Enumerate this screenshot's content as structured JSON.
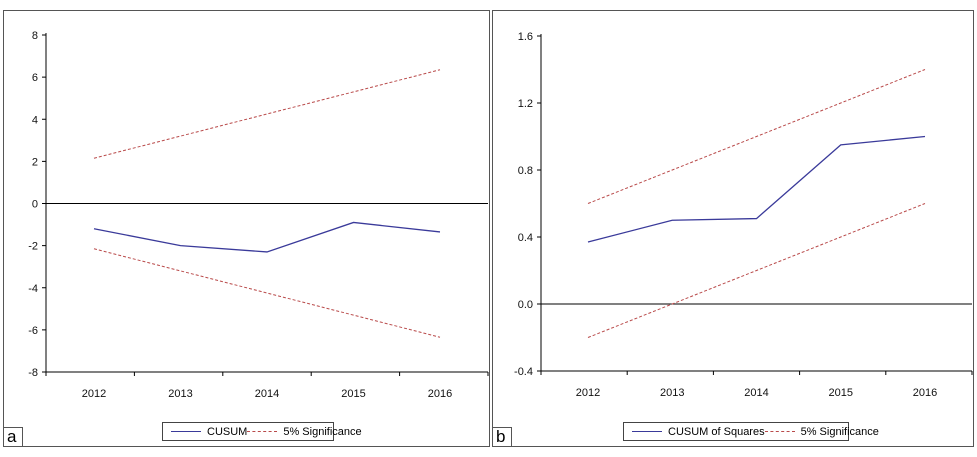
{
  "colors": {
    "main_series": "#3a3a9a",
    "significance": "#b94a4a",
    "axis": "#000000"
  },
  "panels": [
    {
      "label": "a"
    },
    {
      "label": "b"
    }
  ],
  "chart_data": [
    {
      "type": "line",
      "categories": [
        "2012",
        "2013",
        "2014",
        "2015",
        "2016"
      ],
      "ylim": [
        -8,
        8
      ],
      "yticks": [
        "8",
        "6",
        "4",
        "2",
        "0",
        "-2",
        "-4",
        "-6",
        "-8"
      ],
      "ytick_values": [
        8,
        6,
        4,
        2,
        0,
        -2,
        -4,
        -6,
        -8
      ],
      "series": [
        {
          "name": "CUSUM",
          "style": "solid",
          "values": [
            -1.2,
            -2.0,
            -2.3,
            -0.9,
            -1.35
          ]
        },
        {
          "name": "5% Significance",
          "style": "dashed",
          "values": [
            2.15,
            3.2,
            4.25,
            5.3,
            6.35
          ]
        },
        {
          "name": "5% Significance",
          "style": "dashed",
          "values": [
            -2.15,
            -3.2,
            -4.25,
            -5.3,
            -6.35
          ]
        }
      ],
      "legend": {
        "items": [
          "CUSUM",
          "5% Significance"
        ],
        "placement": "bottom-center"
      }
    },
    {
      "type": "line",
      "categories": [
        "2012",
        "2013",
        "2014",
        "2015",
        "2016"
      ],
      "ylim": [
        -0.4,
        1.6
      ],
      "yticks": [
        "1.6",
        "1.2",
        "0.8",
        "0.4",
        "0.0",
        "-0.4"
      ],
      "ytick_values": [
        1.6,
        1.2,
        0.8,
        0.4,
        0.0,
        -0.4
      ],
      "series": [
        {
          "name": "CUSUM of Squares",
          "style": "solid",
          "values": [
            0.37,
            0.5,
            0.51,
            0.95,
            1.0
          ]
        },
        {
          "name": "5% Significance",
          "style": "dashed",
          "values": [
            0.6,
            0.8,
            1.0,
            1.2,
            1.4
          ]
        },
        {
          "name": "5% Significance",
          "style": "dashed",
          "values": [
            -0.2,
            0.0,
            0.2,
            0.4,
            0.6
          ]
        }
      ],
      "legend": {
        "items": [
          "CUSUM of Squares",
          "5% Significance"
        ],
        "placement": "bottom-center"
      }
    }
  ]
}
